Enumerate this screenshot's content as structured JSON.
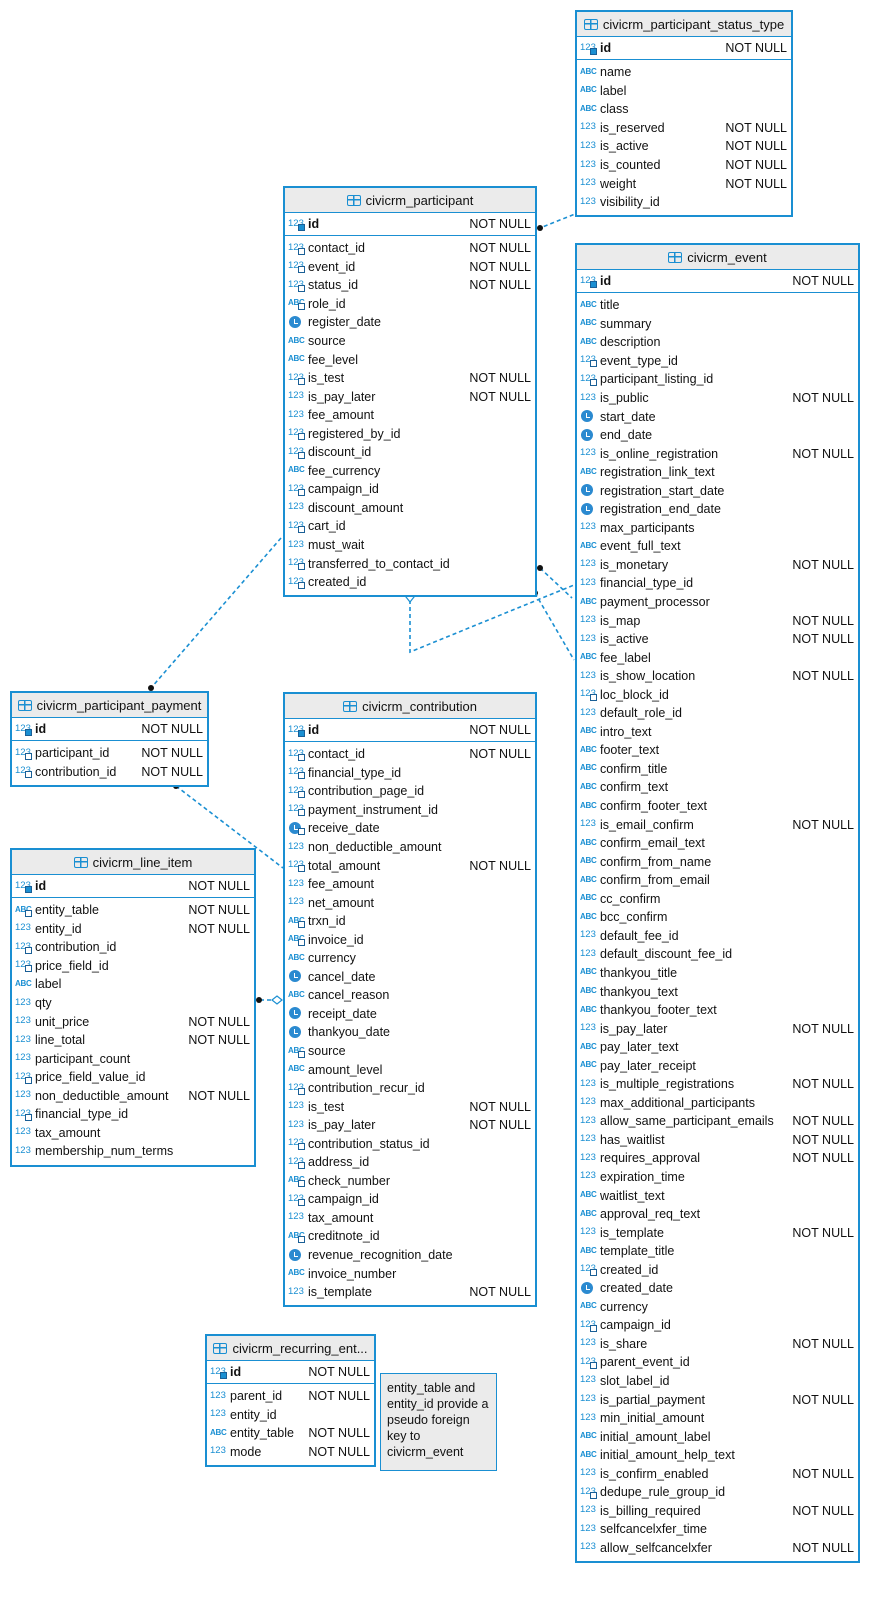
{
  "colors": {
    "border": "#1a8fd2",
    "header": "#ebebeb",
    "line": "#1a8fd2"
  },
  "tables": [
    {
      "title": "civicrm_participant_status_type",
      "pk": {
        "name": "id",
        "null": "NOT NULL"
      },
      "columns": [
        {
          "name": "name",
          "type": "a",
          "null": ""
        },
        {
          "name": "label",
          "type": "a",
          "null": ""
        },
        {
          "name": "class",
          "type": "a",
          "null": ""
        },
        {
          "name": "is_reserved",
          "type": "n",
          "null": "NOT NULL"
        },
        {
          "name": "is_active",
          "type": "n",
          "null": "NOT NULL"
        },
        {
          "name": "is_counted",
          "type": "n",
          "null": "NOT NULL"
        },
        {
          "name": "weight",
          "type": "n",
          "null": "NOT NULL"
        },
        {
          "name": "visibility_id",
          "type": "n",
          "null": ""
        }
      ]
    },
    {
      "title": "civicrm_participant",
      "pk": {
        "name": "id",
        "null": "NOT NULL"
      },
      "columns": [
        {
          "name": "contact_id",
          "type": "nk",
          "null": "NOT NULL"
        },
        {
          "name": "event_id",
          "type": "nk",
          "null": "NOT NULL"
        },
        {
          "name": "status_id",
          "type": "nk",
          "null": "NOT NULL"
        },
        {
          "name": "role_id",
          "type": "ak",
          "null": ""
        },
        {
          "name": "register_date",
          "type": "c",
          "null": ""
        },
        {
          "name": "source",
          "type": "a",
          "null": ""
        },
        {
          "name": "fee_level",
          "type": "a",
          "null": ""
        },
        {
          "name": "is_test",
          "type": "nk",
          "null": "NOT NULL"
        },
        {
          "name": "is_pay_later",
          "type": "n",
          "null": "NOT NULL"
        },
        {
          "name": "fee_amount",
          "type": "n",
          "null": ""
        },
        {
          "name": "registered_by_id",
          "type": "nk",
          "null": ""
        },
        {
          "name": "discount_id",
          "type": "nk",
          "null": ""
        },
        {
          "name": "fee_currency",
          "type": "a",
          "null": ""
        },
        {
          "name": "campaign_id",
          "type": "nk",
          "null": ""
        },
        {
          "name": "discount_amount",
          "type": "n",
          "null": ""
        },
        {
          "name": "cart_id",
          "type": "nk",
          "null": ""
        },
        {
          "name": "must_wait",
          "type": "n",
          "null": ""
        },
        {
          "name": "transferred_to_contact_id",
          "type": "nk",
          "null": ""
        },
        {
          "name": "created_id",
          "type": "nk",
          "null": ""
        }
      ]
    },
    {
      "title": "civicrm_event",
      "pk": {
        "name": "id",
        "null": "NOT NULL"
      },
      "columns": [
        {
          "name": "title",
          "type": "a",
          "null": ""
        },
        {
          "name": "summary",
          "type": "a",
          "null": ""
        },
        {
          "name": "description",
          "type": "a",
          "null": ""
        },
        {
          "name": "event_type_id",
          "type": "nk",
          "null": ""
        },
        {
          "name": "participant_listing_id",
          "type": "nk",
          "null": ""
        },
        {
          "name": "is_public",
          "type": "n",
          "null": "NOT NULL"
        },
        {
          "name": "start_date",
          "type": "c",
          "null": ""
        },
        {
          "name": "end_date",
          "type": "c",
          "null": ""
        },
        {
          "name": "is_online_registration",
          "type": "n",
          "null": "NOT NULL"
        },
        {
          "name": "registration_link_text",
          "type": "a",
          "null": ""
        },
        {
          "name": "registration_start_date",
          "type": "c",
          "null": ""
        },
        {
          "name": "registration_end_date",
          "type": "c",
          "null": ""
        },
        {
          "name": "max_participants",
          "type": "n",
          "null": ""
        },
        {
          "name": "event_full_text",
          "type": "a",
          "null": ""
        },
        {
          "name": "is_monetary",
          "type": "n",
          "null": "NOT NULL"
        },
        {
          "name": "financial_type_id",
          "type": "n",
          "null": ""
        },
        {
          "name": "payment_processor",
          "type": "a",
          "null": ""
        },
        {
          "name": "is_map",
          "type": "n",
          "null": "NOT NULL"
        },
        {
          "name": "is_active",
          "type": "n",
          "null": "NOT NULL"
        },
        {
          "name": "fee_label",
          "type": "a",
          "null": ""
        },
        {
          "name": "is_show_location",
          "type": "n",
          "null": "NOT NULL"
        },
        {
          "name": "loc_block_id",
          "type": "nk",
          "null": ""
        },
        {
          "name": "default_role_id",
          "type": "n",
          "null": ""
        },
        {
          "name": "intro_text",
          "type": "a",
          "null": ""
        },
        {
          "name": "footer_text",
          "type": "a",
          "null": ""
        },
        {
          "name": "confirm_title",
          "type": "a",
          "null": ""
        },
        {
          "name": "confirm_text",
          "type": "a",
          "null": ""
        },
        {
          "name": "confirm_footer_text",
          "type": "a",
          "null": ""
        },
        {
          "name": "is_email_confirm",
          "type": "n",
          "null": "NOT NULL"
        },
        {
          "name": "confirm_email_text",
          "type": "a",
          "null": ""
        },
        {
          "name": "confirm_from_name",
          "type": "a",
          "null": ""
        },
        {
          "name": "confirm_from_email",
          "type": "a",
          "null": ""
        },
        {
          "name": "cc_confirm",
          "type": "a",
          "null": ""
        },
        {
          "name": "bcc_confirm",
          "type": "a",
          "null": ""
        },
        {
          "name": "default_fee_id",
          "type": "n",
          "null": ""
        },
        {
          "name": "default_discount_fee_id",
          "type": "n",
          "null": ""
        },
        {
          "name": "thankyou_title",
          "type": "a",
          "null": ""
        },
        {
          "name": "thankyou_text",
          "type": "a",
          "null": ""
        },
        {
          "name": "thankyou_footer_text",
          "type": "a",
          "null": ""
        },
        {
          "name": "is_pay_later",
          "type": "n",
          "null": "NOT NULL"
        },
        {
          "name": "pay_later_text",
          "type": "a",
          "null": ""
        },
        {
          "name": "pay_later_receipt",
          "type": "a",
          "null": ""
        },
        {
          "name": "is_multiple_registrations",
          "type": "n",
          "null": "NOT NULL"
        },
        {
          "name": "max_additional_participants",
          "type": "n",
          "null": ""
        },
        {
          "name": "allow_same_participant_emails",
          "type": "n",
          "null": "NOT NULL"
        },
        {
          "name": "has_waitlist",
          "type": "n",
          "null": "NOT NULL"
        },
        {
          "name": "requires_approval",
          "type": "n",
          "null": "NOT NULL"
        },
        {
          "name": "expiration_time",
          "type": "n",
          "null": ""
        },
        {
          "name": "waitlist_text",
          "type": "a",
          "null": ""
        },
        {
          "name": "approval_req_text",
          "type": "a",
          "null": ""
        },
        {
          "name": "is_template",
          "type": "n",
          "null": "NOT NULL"
        },
        {
          "name": "template_title",
          "type": "a",
          "null": ""
        },
        {
          "name": "created_id",
          "type": "nk",
          "null": ""
        },
        {
          "name": "created_date",
          "type": "c",
          "null": ""
        },
        {
          "name": "currency",
          "type": "a",
          "null": ""
        },
        {
          "name": "campaign_id",
          "type": "nk",
          "null": ""
        },
        {
          "name": "is_share",
          "type": "n",
          "null": "NOT NULL"
        },
        {
          "name": "parent_event_id",
          "type": "nk",
          "null": ""
        },
        {
          "name": "slot_label_id",
          "type": "n",
          "null": ""
        },
        {
          "name": "is_partial_payment",
          "type": "n",
          "null": "NOT NULL"
        },
        {
          "name": "min_initial_amount",
          "type": "n",
          "null": ""
        },
        {
          "name": "initial_amount_label",
          "type": "a",
          "null": ""
        },
        {
          "name": "initial_amount_help_text",
          "type": "a",
          "null": ""
        },
        {
          "name": "is_confirm_enabled",
          "type": "n",
          "null": "NOT NULL"
        },
        {
          "name": "dedupe_rule_group_id",
          "type": "nk",
          "null": ""
        },
        {
          "name": "is_billing_required",
          "type": "n",
          "null": "NOT NULL"
        },
        {
          "name": "selfcancelxfer_time",
          "type": "n",
          "null": ""
        },
        {
          "name": "allow_selfcancelxfer",
          "type": "n",
          "null": "NOT NULL"
        }
      ]
    },
    {
      "title": "civicrm_participant_payment",
      "pk": {
        "name": "id",
        "null": "NOT NULL"
      },
      "columns": [
        {
          "name": "participant_id",
          "type": "nk",
          "null": "NOT NULL"
        },
        {
          "name": "contribution_id",
          "type": "nk",
          "null": "NOT NULL"
        }
      ]
    },
    {
      "title": "civicrm_contribution",
      "pk": {
        "name": "id",
        "null": "NOT NULL"
      },
      "columns": [
        {
          "name": "contact_id",
          "type": "nk",
          "null": "NOT NULL"
        },
        {
          "name": "financial_type_id",
          "type": "nk",
          "null": ""
        },
        {
          "name": "contribution_page_id",
          "type": "nk",
          "null": ""
        },
        {
          "name": "payment_instrument_id",
          "type": "nk",
          "null": ""
        },
        {
          "name": "receive_date",
          "type": "ck",
          "null": ""
        },
        {
          "name": "non_deductible_amount",
          "type": "n",
          "null": ""
        },
        {
          "name": "total_amount",
          "type": "nk",
          "null": "NOT NULL"
        },
        {
          "name": "fee_amount",
          "type": "n",
          "null": ""
        },
        {
          "name": "net_amount",
          "type": "n",
          "null": ""
        },
        {
          "name": "trxn_id",
          "type": "ak",
          "null": ""
        },
        {
          "name": "invoice_id",
          "type": "ak",
          "null": ""
        },
        {
          "name": "currency",
          "type": "a",
          "null": ""
        },
        {
          "name": "cancel_date",
          "type": "c",
          "null": ""
        },
        {
          "name": "cancel_reason",
          "type": "a",
          "null": ""
        },
        {
          "name": "receipt_date",
          "type": "c",
          "null": ""
        },
        {
          "name": "thankyou_date",
          "type": "c",
          "null": ""
        },
        {
          "name": "source",
          "type": "ak",
          "null": ""
        },
        {
          "name": "amount_level",
          "type": "a",
          "null": ""
        },
        {
          "name": "contribution_recur_id",
          "type": "nk",
          "null": ""
        },
        {
          "name": "is_test",
          "type": "n",
          "null": "NOT NULL"
        },
        {
          "name": "is_pay_later",
          "type": "n",
          "null": "NOT NULL"
        },
        {
          "name": "contribution_status_id",
          "type": "nk",
          "null": ""
        },
        {
          "name": "address_id",
          "type": "nk",
          "null": ""
        },
        {
          "name": "check_number",
          "type": "ak",
          "null": ""
        },
        {
          "name": "campaign_id",
          "type": "nk",
          "null": ""
        },
        {
          "name": "tax_amount",
          "type": "n",
          "null": ""
        },
        {
          "name": "creditnote_id",
          "type": "ak",
          "null": ""
        },
        {
          "name": "revenue_recognition_date",
          "type": "c",
          "null": ""
        },
        {
          "name": "invoice_number",
          "type": "a",
          "null": ""
        },
        {
          "name": "is_template",
          "type": "n",
          "null": "NOT NULL"
        }
      ]
    },
    {
      "title": "civicrm_line_item",
      "pk": {
        "name": "id",
        "null": "NOT NULL"
      },
      "columns": [
        {
          "name": "entity_table",
          "type": "ak",
          "null": "NOT NULL"
        },
        {
          "name": "entity_id",
          "type": "n",
          "null": "NOT NULL"
        },
        {
          "name": "contribution_id",
          "type": "nk",
          "null": ""
        },
        {
          "name": "price_field_id",
          "type": "nk",
          "null": ""
        },
        {
          "name": "label",
          "type": "a",
          "null": ""
        },
        {
          "name": "qty",
          "type": "n",
          "null": ""
        },
        {
          "name": "unit_price",
          "type": "n",
          "null": "NOT NULL"
        },
        {
          "name": "line_total",
          "type": "n",
          "null": "NOT NULL"
        },
        {
          "name": "participant_count",
          "type": "n",
          "null": ""
        },
        {
          "name": "price_field_value_id",
          "type": "nk",
          "null": ""
        },
        {
          "name": "non_deductible_amount",
          "type": "n",
          "null": "NOT NULL"
        },
        {
          "name": "financial_type_id",
          "type": "nk",
          "null": ""
        },
        {
          "name": "tax_amount",
          "type": "n",
          "null": ""
        },
        {
          "name": "membership_num_terms",
          "type": "n",
          "null": ""
        }
      ]
    },
    {
      "title": "civicrm_recurring_ent...",
      "pk": {
        "name": "id",
        "null": "NOT NULL"
      },
      "columns": [
        {
          "name": "parent_id",
          "type": "n",
          "null": "NOT NULL"
        },
        {
          "name": "entity_id",
          "type": "n",
          "null": ""
        },
        {
          "name": "entity_table",
          "type": "a",
          "null": "NOT NULL"
        },
        {
          "name": "mode",
          "type": "n",
          "null": "NOT NULL"
        }
      ]
    }
  ],
  "note": "entity_table and entity_id provide a pseudo foreign key to civicrm_event"
}
